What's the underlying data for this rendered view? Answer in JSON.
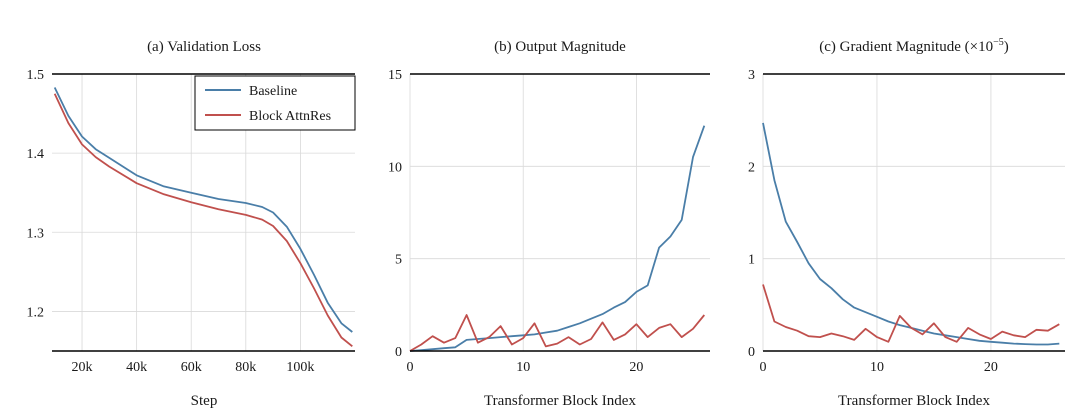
{
  "colors": {
    "baseline": "#4a7ea8",
    "attnres": "#c0504d",
    "grid": "#d9d9d9",
    "axis": "#000000"
  },
  "chart_data": [
    {
      "type": "line",
      "title": "(a) Validation Loss",
      "xlabel": "Step",
      "ylabel": "",
      "xlim": [
        9000,
        120000
      ],
      "ylim": [
        1.15,
        1.5
      ],
      "xticks": [
        20000,
        40000,
        60000,
        80000,
        100000
      ],
      "xticklabels": [
        "20k",
        "40k",
        "60k",
        "80k",
        "100k"
      ],
      "yticks": [
        1.2,
        1.3,
        1.4,
        1.5
      ],
      "yticklabels": [
        "1.2",
        "1.3",
        "1.4",
        "1.5"
      ],
      "grid": true,
      "legend": "top-right",
      "series": [
        {
          "name": "Baseline",
          "color": "baseline",
          "x": [
            10000,
            15000,
            20000,
            25000,
            30000,
            40000,
            50000,
            60000,
            70000,
            80000,
            86000,
            90000,
            95000,
            100000,
            105000,
            110000,
            115000,
            119000
          ],
          "y": [
            1.483,
            1.447,
            1.421,
            1.405,
            1.394,
            1.372,
            1.358,
            1.35,
            1.342,
            1.337,
            1.332,
            1.325,
            1.307,
            1.279,
            1.246,
            1.211,
            1.185,
            1.174
          ]
        },
        {
          "name": "Block AttnRes",
          "color": "attnres",
          "x": [
            10000,
            15000,
            20000,
            25000,
            30000,
            40000,
            50000,
            60000,
            70000,
            80000,
            86000,
            90000,
            95000,
            100000,
            105000,
            110000,
            115000,
            119000
          ],
          "y": [
            1.475,
            1.438,
            1.411,
            1.395,
            1.383,
            1.362,
            1.348,
            1.338,
            1.329,
            1.322,
            1.316,
            1.308,
            1.289,
            1.261,
            1.229,
            1.195,
            1.167,
            1.156
          ]
        }
      ]
    },
    {
      "type": "line",
      "title": "(b) Output Magnitude",
      "xlabel": "Transformer Block Index",
      "ylabel": "",
      "xlim": [
        0,
        26.5
      ],
      "ylim": [
        0,
        15
      ],
      "xticks": [
        0,
        10,
        20
      ],
      "xticklabels": [
        "0",
        "10",
        "20"
      ],
      "yticks": [
        0,
        5,
        10,
        15
      ],
      "yticklabels": [
        "0",
        "5",
        "10",
        "15"
      ],
      "grid": true,
      "series": [
        {
          "name": "Baseline",
          "color": "baseline",
          "x": [
            0,
            1,
            2,
            3,
            4,
            5,
            6,
            7,
            8,
            9,
            10,
            11,
            12,
            13,
            14,
            15,
            16,
            17,
            18,
            19,
            20,
            21,
            22,
            23,
            24,
            25,
            26
          ],
          "y": [
            0.0,
            0.05,
            0.1,
            0.15,
            0.2,
            0.6,
            0.65,
            0.7,
            0.75,
            0.8,
            0.85,
            0.9,
            1.0,
            1.1,
            1.3,
            1.5,
            1.75,
            2.0,
            2.35,
            2.65,
            3.2,
            3.55,
            5.6,
            6.2,
            7.1,
            10.5,
            12.2
          ]
        },
        {
          "name": "Block AttnRes",
          "color": "attnres",
          "x": [
            0,
            1,
            2,
            3,
            4,
            5,
            6,
            7,
            8,
            9,
            10,
            11,
            12,
            13,
            14,
            15,
            16,
            17,
            18,
            19,
            20,
            21,
            22,
            23,
            24,
            25,
            26
          ],
          "y": [
            0.0,
            0.35,
            0.8,
            0.45,
            0.7,
            1.95,
            0.45,
            0.75,
            1.35,
            0.35,
            0.7,
            1.5,
            0.25,
            0.4,
            0.75,
            0.35,
            0.65,
            1.55,
            0.6,
            0.9,
            1.45,
            0.75,
            1.25,
            1.45,
            0.75,
            1.2,
            1.95
          ]
        }
      ]
    },
    {
      "type": "line",
      "title": "(c) Gradient Magnitude (×10",
      "title_sup": "−5",
      "title_close": ")",
      "xlabel": "Transformer Block Index",
      "ylabel": "",
      "xlim": [
        0,
        26.5
      ],
      "ylim": [
        0,
        3
      ],
      "xticks": [
        0,
        10,
        20
      ],
      "xticklabels": [
        "0",
        "10",
        "20"
      ],
      "yticks": [
        0,
        1,
        2,
        3
      ],
      "yticklabels": [
        "0",
        "1",
        "2",
        "3"
      ],
      "grid": true,
      "series": [
        {
          "name": "Baseline",
          "color": "baseline",
          "x": [
            0,
            1,
            2,
            3,
            4,
            5,
            6,
            7,
            8,
            9,
            10,
            11,
            12,
            13,
            14,
            15,
            16,
            17,
            18,
            19,
            20,
            21,
            22,
            23,
            24,
            25,
            26
          ],
          "y": [
            2.47,
            1.85,
            1.4,
            1.18,
            0.95,
            0.78,
            0.68,
            0.56,
            0.47,
            0.42,
            0.37,
            0.32,
            0.28,
            0.25,
            0.22,
            0.19,
            0.17,
            0.15,
            0.13,
            0.11,
            0.1,
            0.09,
            0.08,
            0.075,
            0.07,
            0.07,
            0.08
          ]
        },
        {
          "name": "Block AttnRes",
          "color": "attnres",
          "x": [
            0,
            1,
            2,
            3,
            4,
            5,
            6,
            7,
            8,
            9,
            10,
            11,
            12,
            13,
            14,
            15,
            16,
            17,
            18,
            19,
            20,
            21,
            22,
            23,
            24,
            25,
            26
          ],
          "y": [
            0.72,
            0.32,
            0.26,
            0.22,
            0.16,
            0.15,
            0.19,
            0.16,
            0.12,
            0.24,
            0.15,
            0.1,
            0.38,
            0.25,
            0.18,
            0.3,
            0.15,
            0.1,
            0.25,
            0.18,
            0.13,
            0.21,
            0.17,
            0.15,
            0.23,
            0.22,
            0.29
          ]
        }
      ]
    }
  ]
}
